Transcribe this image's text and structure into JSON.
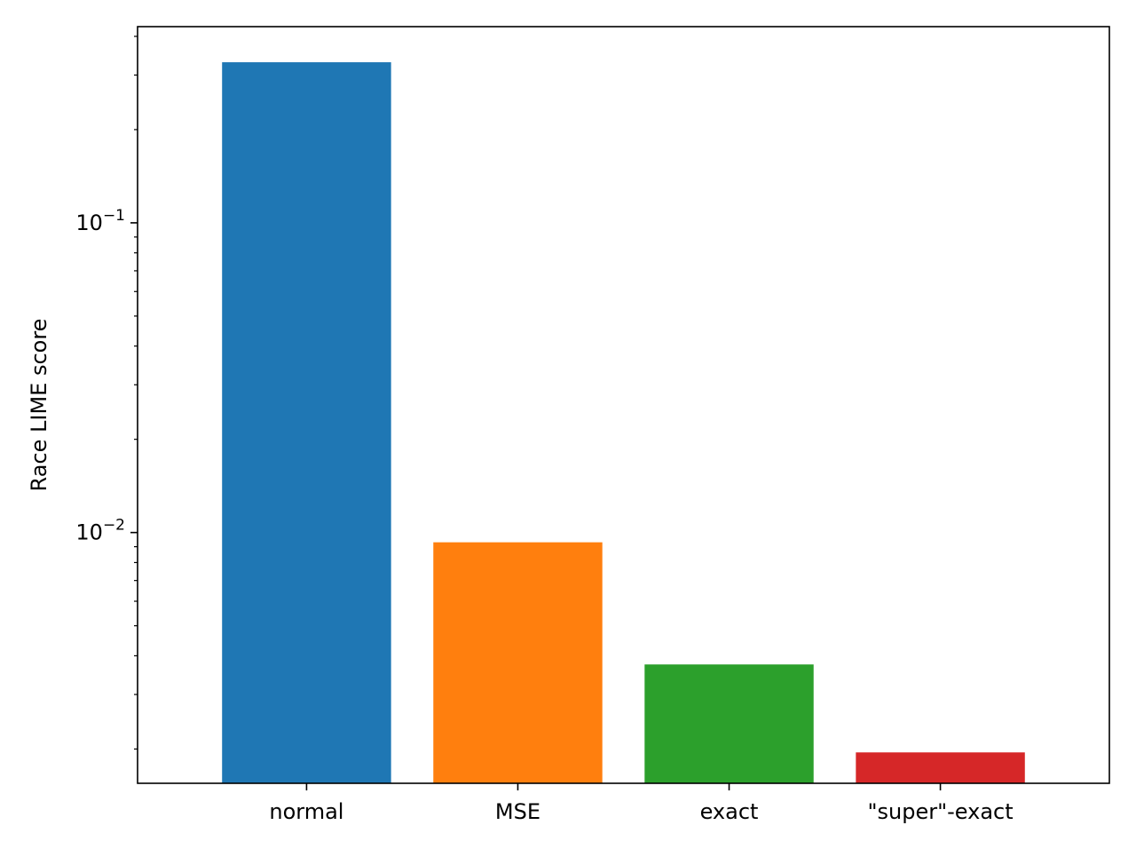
{
  "chart_data": {
    "type": "bar",
    "categories": [
      "normal",
      "MSE",
      "exact",
      "\"super\"-exact"
    ],
    "values": [
      0.33,
      0.0093,
      0.00375,
      0.00195
    ],
    "colors": [
      "#1f77b4",
      "#ff7f0e",
      "#2ca02c",
      "#d62728"
    ],
    "title": "",
    "xlabel": "",
    "ylabel": "Race LIME score",
    "yscale": "log",
    "ylim": [
      0.00155,
      0.43
    ],
    "y_major_ticks": [
      {
        "value": 0.01,
        "base": "10",
        "exponent": "−2"
      },
      {
        "value": 0.1,
        "base": "10",
        "exponent": "−1"
      }
    ],
    "grid": false,
    "legend": "none"
  }
}
